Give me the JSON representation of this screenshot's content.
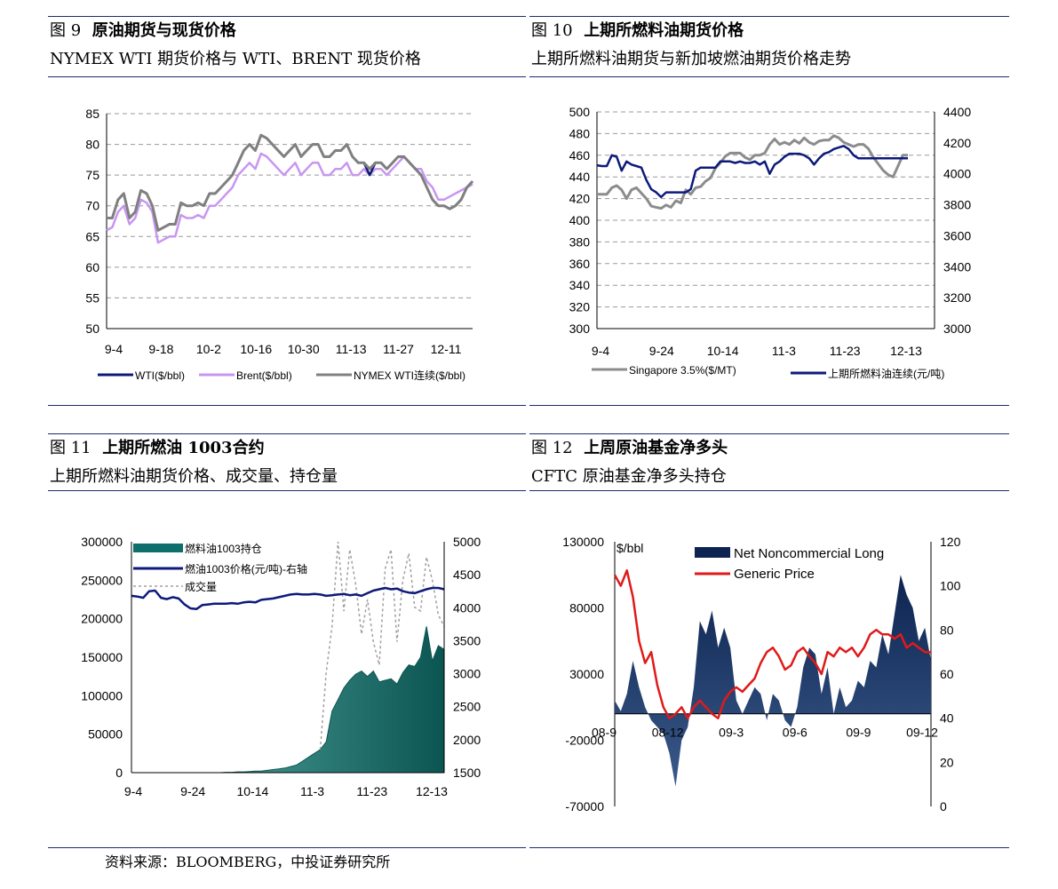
{
  "panels": [
    {
      "fig": "图 9",
      "title": "原油期货与现货价格",
      "subtitle": "NYMEX WTI 期货价格与 WTI、BRENT 现货价格"
    },
    {
      "fig": "图 10",
      "title": "上期所燃料油期货价格",
      "subtitle": "上期所燃料油期货与新加坡燃油期货价格走势"
    },
    {
      "fig": "图 11",
      "title_prefix": "上期所燃油 ",
      "title_bold": "1003",
      "title_suffix": "合约",
      "subtitle": "上期所燃料油期货价格、成交量、持仓量"
    },
    {
      "fig": "图 12",
      "title": "上周原油基金净多头",
      "subtitle": "CFTC  原油基金净多头持仓"
    }
  ],
  "footer": "资料来源：BLOOMBERG，中投证券研究所",
  "colors": {
    "rule": "#1f2a6e",
    "wti": "#0d1a7a",
    "brent": "#c896f0",
    "nymex": "#808080",
    "singapore": "#8c8c8c",
    "shfe": "#0d1a7a",
    "oi": "#0d6e6b",
    "vol": "#a0a0a0",
    "net": "#0d2450",
    "price": "#e01a1a"
  },
  "chart_data": [
    {
      "type": "line",
      "x_ticks": [
        "9-4",
        "9-18",
        "10-2",
        "10-16",
        "10-30",
        "11-13",
        "11-27",
        "12-11"
      ],
      "ylim": [
        50,
        85
      ],
      "y_ticks": [
        50,
        55,
        60,
        65,
        70,
        75,
        80,
        85
      ],
      "grid": true,
      "legend": "bottom",
      "series": [
        {
          "name": "WTI($/bbl)",
          "values": [
            68,
            68,
            71,
            72,
            68,
            69,
            72.5,
            72,
            70,
            66,
            66.5,
            67,
            67,
            70.5,
            70,
            70,
            70.5,
            70,
            72,
            72,
            73,
            74,
            75,
            77,
            79,
            80,
            79,
            81.5,
            81,
            80,
            79,
            78,
            79,
            80,
            78,
            79,
            80,
            80,
            78,
            78,
            79,
            79,
            80,
            78,
            77,
            77,
            75,
            77,
            77,
            76,
            77,
            78,
            78,
            77,
            76,
            75,
            73,
            71,
            70,
            70,
            69.5,
            70,
            71,
            73,
            74
          ]
        },
        {
          "name": "Brent($/bbl)",
          "values": [
            66,
            66.5,
            69,
            70,
            67,
            68,
            71,
            70.5,
            69,
            64,
            64.5,
            65,
            65,
            68.5,
            68,
            68,
            68.5,
            68,
            70,
            70,
            71,
            72,
            73,
            75,
            76,
            77,
            76,
            78.5,
            78,
            77,
            76,
            75,
            76,
            77,
            75,
            76,
            77,
            77,
            75,
            75,
            76,
            76,
            77,
            75,
            75,
            76,
            75,
            76,
            76,
            75,
            76,
            77,
            78,
            77,
            76,
            76,
            74,
            73,
            71,
            71,
            71.5,
            72,
            72.5,
            73,
            73.5
          ]
        },
        {
          "name": "NYMEX WTI连续($/bbl)",
          "values": [
            68,
            68,
            71,
            72,
            68,
            69,
            72.5,
            72,
            70,
            66,
            66.5,
            67,
            67,
            70.5,
            70,
            70,
            70.5,
            70,
            72,
            72,
            73,
            74,
            75,
            77,
            79,
            80,
            79,
            81.5,
            81,
            80,
            79,
            78,
            79,
            80,
            78,
            79,
            80,
            80,
            78,
            78,
            79,
            79,
            80,
            78,
            77,
            77,
            76,
            77,
            77,
            76,
            77,
            78,
            78,
            77,
            76,
            75,
            73,
            71,
            70,
            70,
            69.5,
            70,
            71,
            73,
            74
          ]
        }
      ]
    },
    {
      "type": "line",
      "x_ticks": [
        "9-4",
        "9-24",
        "10-14",
        "11-3",
        "11-23",
        "12-13"
      ],
      "ylim": [
        300,
        500
      ],
      "y_ticks": [
        300,
        320,
        340,
        360,
        380,
        400,
        420,
        440,
        460,
        480,
        500
      ],
      "ylim_right": [
        3000,
        4400
      ],
      "y_ticks_right": [
        3000,
        3200,
        3400,
        3600,
        3800,
        4000,
        4200,
        4400
      ],
      "grid": true,
      "legend": "bottom",
      "series": [
        {
          "name": "Singapore 3.5%($/MT)",
          "axis": "left",
          "values": [
            424,
            424,
            424,
            430,
            432,
            428,
            420,
            428,
            430,
            425,
            420,
            413,
            412,
            411,
            414,
            412,
            418,
            416,
            428,
            424,
            430,
            431,
            436,
            439,
            448,
            453,
            459,
            462,
            462,
            462,
            458,
            456,
            460,
            460,
            462,
            470,
            475,
            470,
            472,
            470,
            474,
            471,
            476,
            472,
            470,
            473,
            474,
            474,
            478,
            476,
            472,
            470,
            468,
            470,
            470,
            466,
            458,
            452,
            446,
            442,
            440,
            450,
            460,
            460
          ]
        },
        {
          "name": "上期所燃料油连续(元/吨)",
          "axis": "right",
          "values": [
            4055,
            4050,
            4050,
            4120,
            4110,
            4020,
            4080,
            4060,
            4050,
            4040,
            3960,
            3900,
            3880,
            3850,
            3880,
            3880,
            3880,
            3880,
            3880,
            3900,
            4020,
            4040,
            4040,
            4040,
            4040,
            4080,
            4080,
            4080,
            4070,
            4080,
            4070,
            4070,
            4080,
            4060,
            4080,
            4000,
            4060,
            4080,
            4110,
            4130,
            4130,
            4130,
            4120,
            4100,
            4060,
            4100,
            4130,
            4140,
            4160,
            4170,
            4180,
            4160,
            4120,
            4100,
            4100,
            4100,
            4100,
            4100,
            4100,
            4100,
            4100,
            4100,
            4100,
            4100
          ]
        }
      ]
    },
    {
      "type": "area",
      "x_ticks": [
        "9-4",
        "9-24",
        "10-14",
        "11-3",
        "11-23",
        "12-13"
      ],
      "ylim": [
        0,
        300000
      ],
      "y_ticks": [
        0,
        50000,
        100000,
        150000,
        200000,
        250000,
        300000
      ],
      "ylim_right": [
        1500,
        5000
      ],
      "y_ticks_right": [
        1500,
        2000,
        2500,
        3000,
        3500,
        4000,
        4500,
        5000
      ],
      "grid": false,
      "legend": "top-left",
      "series": [
        {
          "name": "燃料油1003持仓",
          "axis": "left",
          "values": [
            0,
            0,
            0,
            0,
            0,
            0,
            0,
            0,
            0,
            0,
            0,
            0,
            0,
            0,
            0,
            0,
            500,
            500,
            1000,
            1000,
            1500,
            2000,
            2000,
            3000,
            4000,
            5000,
            6000,
            8000,
            10000,
            15000,
            20000,
            25000,
            30000,
            40000,
            80000,
            95000,
            110000,
            120000,
            128000,
            132000,
            125000,
            132000,
            118000,
            120000,
            122000,
            115000,
            130000,
            140000,
            138000,
            150000,
            190000,
            145000,
            165000,
            160000
          ]
        },
        {
          "name": "燃油1003价格(元/吨)-右轴",
          "axis": "right",
          "values": [
            4180,
            4170,
            4150,
            4250,
            4260,
            4150,
            4130,
            4160,
            4140,
            4050,
            3990,
            3980,
            4040,
            4050,
            4060,
            4060,
            4060,
            4070,
            4060,
            4080,
            4090,
            4080,
            4120,
            4130,
            4140,
            4160,
            4180,
            4200,
            4210,
            4200,
            4200,
            4210,
            4200,
            4180,
            4190,
            4200,
            4210,
            4190,
            4200,
            4180,
            4220,
            4260,
            4280,
            4300,
            4280,
            4290,
            4250,
            4230,
            4220,
            4250,
            4280,
            4300,
            4300,
            4280
          ]
        },
        {
          "name": "成交量",
          "axis": "left",
          "values": [
            null,
            null,
            null,
            null,
            null,
            null,
            null,
            null,
            null,
            null,
            null,
            null,
            null,
            null,
            null,
            null,
            null,
            null,
            null,
            null,
            null,
            null,
            null,
            null,
            null,
            null,
            null,
            null,
            null,
            null,
            null,
            null,
            30000,
            130000,
            190000,
            300000,
            210000,
            290000,
            245000,
            180000,
            225000,
            170000,
            140000,
            265000,
            290000,
            170000,
            250000,
            285000,
            215000,
            210000,
            280000,
            250000,
            205000,
            190000
          ]
        }
      ]
    },
    {
      "type": "area",
      "x_ticks": [
        "08-9",
        "08-12",
        "09-3",
        "09-6",
        "09-9",
        "09-12"
      ],
      "ylabel": "$/bbl",
      "ylim": [
        -70000,
        130000
      ],
      "y_ticks": [
        -70000,
        -20000,
        30000,
        80000,
        130000
      ],
      "ylim_right": [
        0,
        120
      ],
      "y_ticks_right": [
        0,
        20,
        40,
        60,
        80,
        100,
        120
      ],
      "grid": false,
      "legend": "top",
      "series": [
        {
          "name": "Net Noncommercial Long",
          "axis": "left",
          "values": [
            10000,
            2000,
            15000,
            40000,
            20000,
            5000,
            -5000,
            -10000,
            -15000,
            -30000,
            -55000,
            -20000,
            -10000,
            20000,
            70000,
            60000,
            78000,
            50000,
            65000,
            50000,
            10000,
            0,
            10000,
            20000,
            15000,
            -5000,
            15000,
            10000,
            -5000,
            -10000,
            5000,
            35000,
            50000,
            45000,
            15000,
            35000,
            0,
            20000,
            5000,
            10000,
            25000,
            20000,
            40000,
            35000,
            60000,
            45000,
            75000,
            105000,
            90000,
            80000,
            55000,
            65000,
            40000
          ]
        },
        {
          "name": "Generic Price",
          "axis": "right",
          "values": [
            105,
            100,
            107,
            95,
            75,
            65,
            70,
            55,
            45,
            40,
            42,
            45,
            40,
            45,
            48,
            45,
            42,
            40,
            48,
            52,
            54,
            52,
            55,
            58,
            65,
            70,
            72,
            68,
            62,
            64,
            70,
            72,
            68,
            65,
            60,
            70,
            68,
            72,
            70,
            72,
            68,
            72,
            78,
            80,
            78,
            78,
            76,
            78,
            72,
            74,
            72,
            70,
            70
          ]
        }
      ]
    }
  ]
}
